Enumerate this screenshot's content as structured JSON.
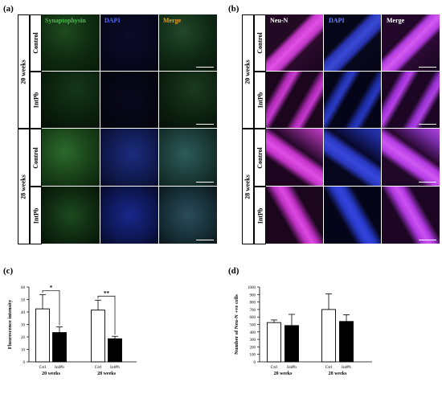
{
  "panels": {
    "a": "(a)",
    "b": "(b)",
    "c": "(c)",
    "d": "(d)"
  },
  "panel_a": {
    "columns": [
      "Synaptophysin",
      "DAPI",
      "Merge"
    ],
    "column_colors": [
      "#46c046",
      "#4a6bff",
      "#e6a020"
    ],
    "groups": [
      "20 weeks",
      "28 weeks"
    ],
    "rows": [
      "Control",
      "IntPb",
      "Control",
      "IntPb"
    ]
  },
  "panel_b": {
    "columns": [
      "Neu-N",
      "DAPI",
      "Merge"
    ],
    "column_colors": [
      "#ffffff",
      "#6d86ff",
      "#ffffff"
    ],
    "groups": [
      "20 weeks",
      "28 weeks"
    ],
    "rows": [
      "Control",
      "IntPb",
      "Control",
      "IntPb"
    ]
  },
  "chart_data": [
    {
      "type": "bar",
      "ylabel": "Fluorescence intensity",
      "ylim": [
        0,
        60
      ],
      "yticks": [
        "0",
        "10",
        "20",
        "30",
        "40",
        "50",
        "60"
      ],
      "categories": [
        "Ctrl",
        "IntPb",
        "Ctrl",
        "IntPb"
      ],
      "groups": [
        "20 weeks",
        "28 weeks"
      ],
      "values": [
        42.5,
        23.5,
        41.5,
        18.5
      ],
      "errors": [
        11.5,
        4.5,
        8.0,
        2.0
      ],
      "fills": [
        "#ffffff",
        "#000000",
        "#ffffff",
        "#000000"
      ],
      "significance": [
        "*",
        "**"
      ]
    },
    {
      "type": "bar",
      "ylabel": "Number of Neu-N +ve cells",
      "ylim": [
        0,
        1000
      ],
      "yticks": [
        "0",
        "100",
        "200",
        "300",
        "400",
        "500",
        "600",
        "700",
        "800",
        "900",
        "1000"
      ],
      "categories": [
        "Ctrl",
        "IntPb",
        "Ctrl",
        "IntPb"
      ],
      "groups": [
        "20 weeks",
        "28 weeks"
      ],
      "values": [
        525,
        485,
        700,
        540
      ],
      "errors": [
        35,
        150,
        210,
        90
      ],
      "fills": [
        "#ffffff",
        "#000000",
        "#ffffff",
        "#000000"
      ]
    }
  ]
}
